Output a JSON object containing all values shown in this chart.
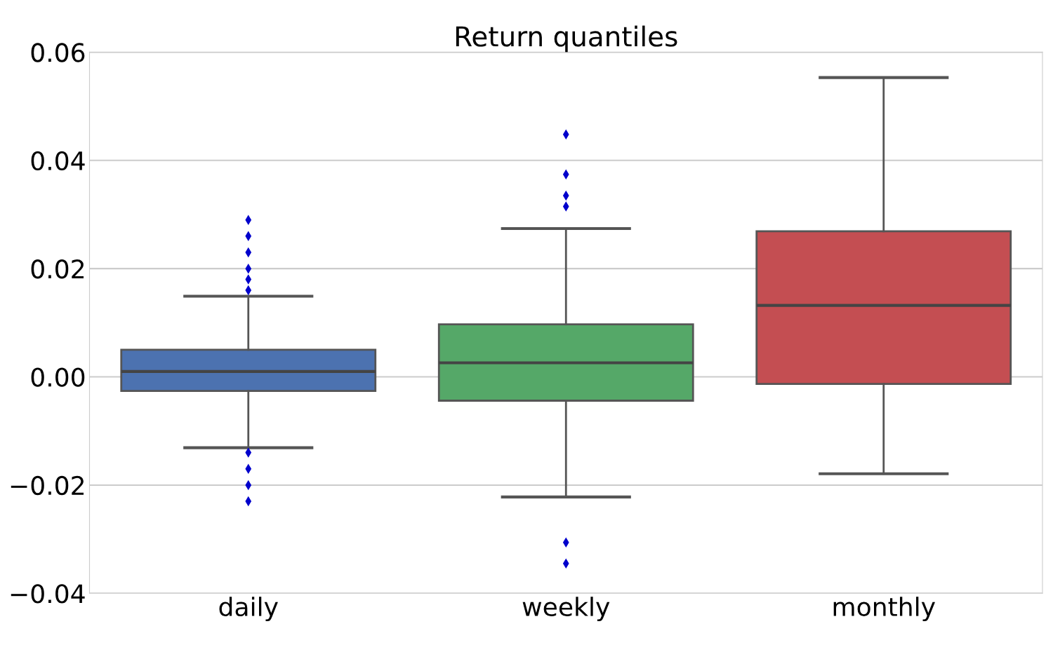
{
  "chart_data": {
    "type": "box",
    "title": "Return quantiles",
    "categories": [
      "daily",
      "weekly",
      "monthly"
    ],
    "colors": [
      "#4c72b0",
      "#55a868",
      "#c44e52"
    ],
    "boxes": [
      {
        "low": -0.0131,
        "q1": -0.0026,
        "median": 0.001,
        "q3": 0.005,
        "high": 0.0149,
        "outliers": [
          0.029,
          0.026,
          0.023,
          0.02,
          0.018,
          0.016,
          -0.014,
          -0.017,
          -0.02,
          -0.023
        ]
      },
      {
        "low": -0.0222,
        "q1": -0.0044,
        "median": 0.0026,
        "q3": 0.0097,
        "high": 0.0274,
        "outliers": [
          0.0448,
          0.0374,
          0.0335,
          0.0315,
          -0.0306,
          -0.0345
        ]
      },
      {
        "low": -0.0179,
        "q1": -0.0013,
        "median": 0.0132,
        "q3": 0.0269,
        "high": 0.0553
      }
    ],
    "ylim": [
      -0.04,
      0.06
    ],
    "yticks": [
      {
        "value": -0.04,
        "label": "−0.04"
      },
      {
        "value": -0.02,
        "label": "−0.02"
      },
      {
        "value": 0,
        "label": "0.00"
      },
      {
        "value": 0.02,
        "label": "0.02"
      },
      {
        "value": 0.04,
        "label": "0.04"
      },
      {
        "value": 0.06,
        "label": "0.06"
      }
    ],
    "grid": "y",
    "marker": "diamond"
  }
}
